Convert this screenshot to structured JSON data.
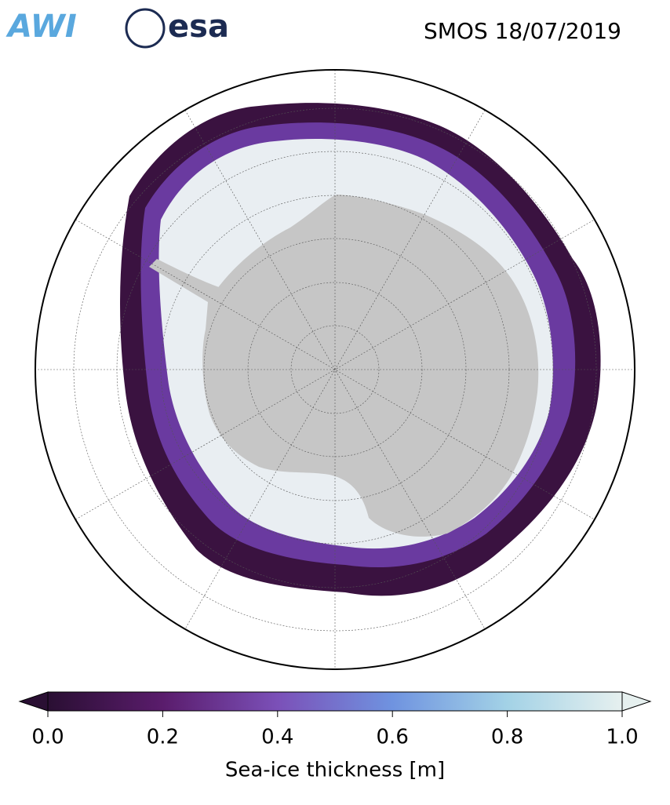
{
  "header": {
    "logos": [
      "AWI",
      "esa"
    ],
    "title": "SMOS 18/07/2019"
  },
  "colorbar": {
    "label": "Sea-ice thickness [m]",
    "lim": [
      0,
      1
    ],
    "ticks": [
      {
        "value": 0,
        "label": "0.0"
      },
      0.2,
      0.4,
      0.6,
      0.8,
      {
        "value": 1,
        "label": "1.0"
      }
    ],
    "colors": [
      "#2a0f33",
      "#5a1c6c",
      "#7b50b8",
      "#6f93e0",
      "#a3d2e6",
      "#e6f0ef"
    ]
  }
}
